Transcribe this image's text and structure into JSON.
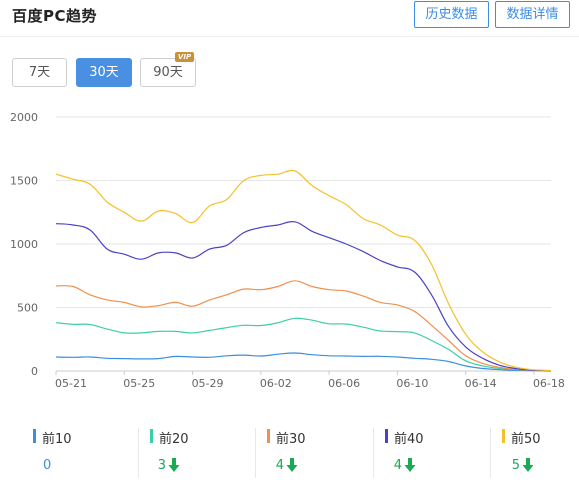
{
  "header": {
    "title": "百度PC趋势",
    "history_btn": "历史数据",
    "detail_btn": "数据详情"
  },
  "range_buttons": {
    "r7": "7天",
    "r30": "30天",
    "r90": "90天",
    "vip_badge": "VIP",
    "selected": "30天"
  },
  "chart_data": {
    "type": "line",
    "ylim": [
      0,
      2000
    ],
    "yticks": [
      "0",
      "500",
      "1000",
      "1500",
      "2000"
    ],
    "xlabels": [
      "05-21",
      "05-25",
      "05-29",
      "06-02",
      "06-06",
      "06-10",
      "06-14",
      "06-18"
    ],
    "x_days": 30,
    "series": [
      {
        "name": "前10",
        "color": "#3b8fe0",
        "values": [
          110,
          108,
          110,
          100,
          98,
          95,
          98,
          115,
          110,
          108,
          120,
          125,
          118,
          132,
          142,
          128,
          120,
          118,
          115,
          116,
          110,
          100,
          92,
          75,
          40,
          20,
          10,
          5,
          2,
          0
        ]
      },
      {
        "name": "前20",
        "color": "#3ccfa6",
        "values": [
          380,
          368,
          366,
          330,
          300,
          300,
          312,
          312,
          300,
          320,
          342,
          360,
          358,
          380,
          415,
          400,
          372,
          370,
          345,
          315,
          310,
          300,
          240,
          170,
          80,
          40,
          20,
          10,
          5,
          2
        ]
      },
      {
        "name": "前30",
        "color": "#f0904f",
        "values": [
          670,
          665,
          600,
          560,
          540,
          505,
          515,
          540,
          510,
          560,
          600,
          645,
          640,
          665,
          710,
          665,
          640,
          630,
          590,
          540,
          520,
          470,
          360,
          240,
          120,
          60,
          28,
          12,
          5,
          2
        ]
      },
      {
        "name": "前40",
        "color": "#4b42c8",
        "values": [
          1160,
          1150,
          1110,
          960,
          920,
          880,
          930,
          930,
          890,
          960,
          990,
          1090,
          1130,
          1150,
          1175,
          1100,
          1050,
          1000,
          940,
          870,
          820,
          780,
          600,
          350,
          190,
          100,
          45,
          18,
          6,
          3
        ]
      },
      {
        "name": "前50",
        "color": "#f2c22b",
        "values": [
          1550,
          1510,
          1470,
          1330,
          1250,
          1180,
          1260,
          1240,
          1170,
          1300,
          1350,
          1500,
          1540,
          1550,
          1575,
          1460,
          1380,
          1310,
          1200,
          1150,
          1070,
          1030,
          840,
          530,
          290,
          150,
          70,
          28,
          10,
          4
        ]
      }
    ]
  },
  "legend": [
    {
      "label": "前10",
      "value": "0",
      "trend": "",
      "color": "#3b8fe0"
    },
    {
      "label": "前20",
      "value": "3",
      "trend": "down",
      "color": "#3ccfa6"
    },
    {
      "label": "前30",
      "value": "4",
      "trend": "down",
      "color": "#f0904f"
    },
    {
      "label": "前40",
      "value": "4",
      "trend": "down",
      "color": "#4b42c8"
    },
    {
      "label": "前50",
      "value": "5",
      "trend": "down",
      "color": "#f2c22b"
    }
  ],
  "colors": {
    "accent": "#4a90e2",
    "positive_value": "#3b8fe0",
    "trend_value": "#1aaa55",
    "vip": "#c8913a"
  }
}
